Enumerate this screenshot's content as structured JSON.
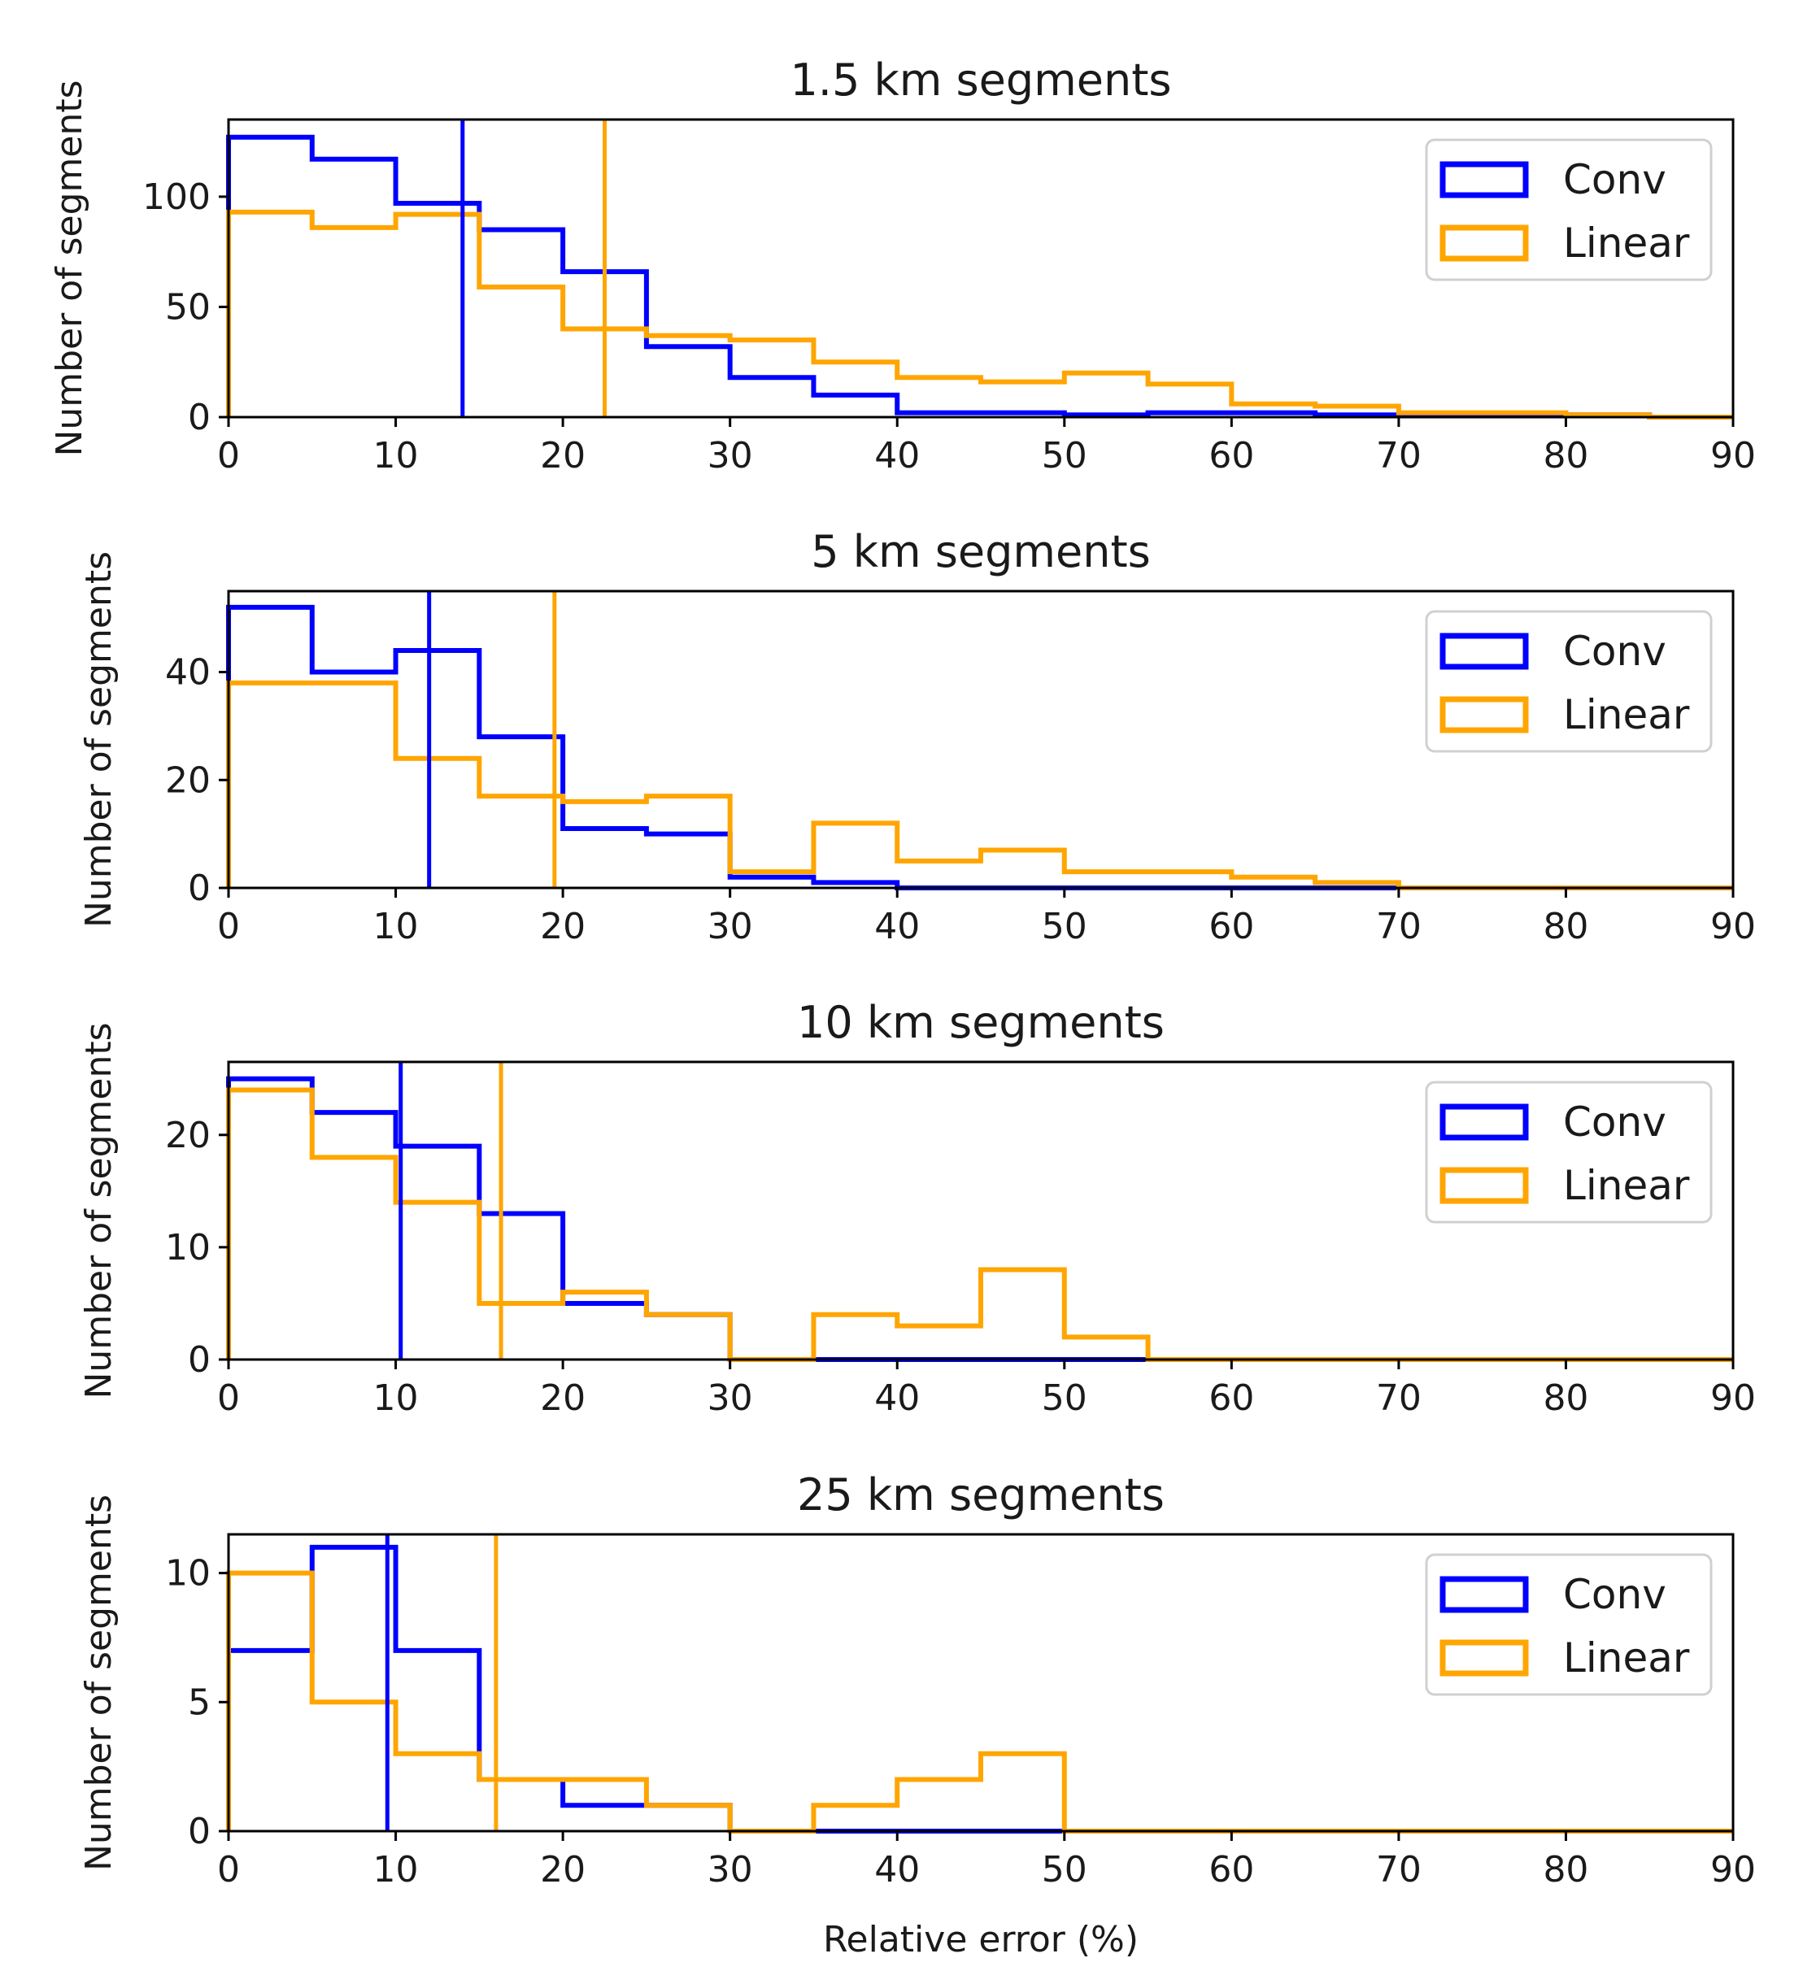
{
  "figure": {
    "xlabel": "Relative error (%)",
    "ylabel": "Number of segments"
  },
  "colors": {
    "conv": "#0000ff",
    "linear": "#ffa500"
  },
  "chart_data": [
    {
      "type": "histogram",
      "title": "1.5 km segments",
      "xlim": [
        0,
        90
      ],
      "ylim": [
        0,
        135
      ],
      "xticks": [
        0,
        10,
        20,
        30,
        40,
        50,
        60,
        70,
        80,
        90
      ],
      "yticks": [
        0,
        50,
        100
      ],
      "bin_edges": [
        0,
        5,
        10,
        15,
        20,
        25,
        30,
        35,
        40,
        45,
        50,
        55,
        60,
        65,
        70,
        75,
        80,
        85,
        90
      ],
      "series": [
        {
          "name": "Conv",
          "values": [
            127,
            117,
            97,
            85,
            66,
            32,
            18,
            10,
            2,
            2,
            1,
            2,
            2,
            1,
            1,
            1,
            1,
            0
          ],
          "mean_line": 14
        },
        {
          "name": "Linear",
          "values": [
            93,
            86,
            92,
            59,
            40,
            37,
            35,
            25,
            18,
            16,
            20,
            15,
            6,
            5,
            2,
            2,
            1,
            0
          ],
          "mean_line": 22.5
        }
      ],
      "legend": {
        "position": "upper right",
        "entries": [
          "Conv",
          "Linear"
        ]
      }
    },
    {
      "type": "histogram",
      "title": "5 km segments",
      "xlim": [
        0,
        90
      ],
      "ylim": [
        0,
        55
      ],
      "xticks": [
        0,
        10,
        20,
        30,
        40,
        50,
        60,
        70,
        80,
        90
      ],
      "yticks": [
        0,
        20,
        40
      ],
      "bin_edges": [
        0,
        5,
        10,
        15,
        20,
        25,
        30,
        35,
        40,
        45,
        50,
        55,
        60,
        65,
        70,
        75,
        80,
        85,
        90
      ],
      "series": [
        {
          "name": "Conv",
          "values": [
            52,
            40,
            44,
            28,
            11,
            10,
            2,
            1,
            0,
            0,
            0,
            0,
            0,
            0,
            0,
            0,
            0,
            0
          ],
          "mean_line": 12
        },
        {
          "name": "Linear",
          "values": [
            38,
            38,
            24,
            17,
            16,
            17,
            3,
            12,
            5,
            7,
            3,
            3,
            2,
            1,
            0,
            0,
            0,
            0
          ],
          "mean_line": 19.5
        }
      ],
      "legend": {
        "position": "upper right",
        "entries": [
          "Conv",
          "Linear"
        ]
      }
    },
    {
      "type": "histogram",
      "title": "10 km segments",
      "xlim": [
        0,
        90
      ],
      "ylim": [
        0,
        26.5
      ],
      "xticks": [
        0,
        10,
        20,
        30,
        40,
        50,
        60,
        70,
        80,
        90
      ],
      "yticks": [
        0,
        10,
        20
      ],
      "bin_edges": [
        0,
        5,
        10,
        15,
        20,
        25,
        30,
        35,
        40,
        45,
        50,
        55,
        60,
        65,
        70,
        75,
        80,
        85,
        90
      ],
      "series": [
        {
          "name": "Conv",
          "values": [
            25,
            22,
            19,
            13,
            5,
            4,
            0,
            0,
            0,
            0,
            0,
            0,
            0,
            0,
            0,
            0,
            0,
            0
          ],
          "mean_line": 10.3
        },
        {
          "name": "Linear",
          "values": [
            24,
            18,
            14,
            5,
            6,
            4,
            0,
            4,
            3,
            8,
            2,
            0,
            0,
            0,
            0,
            0,
            0,
            0
          ],
          "mean_line": 16.3
        }
      ],
      "legend": {
        "position": "upper right",
        "entries": [
          "Conv",
          "Linear"
        ]
      }
    },
    {
      "type": "histogram",
      "title": "25 km segments",
      "xlim": [
        0,
        90
      ],
      "ylim": [
        0,
        11.5
      ],
      "xticks": [
        0,
        10,
        20,
        30,
        40,
        50,
        60,
        70,
        80,
        90
      ],
      "yticks": [
        0,
        5,
        10
      ],
      "bin_edges": [
        0,
        5,
        10,
        15,
        20,
        25,
        30,
        35,
        40,
        45,
        50,
        55,
        60,
        65,
        70,
        75,
        80,
        85,
        90
      ],
      "series": [
        {
          "name": "Conv",
          "values": [
            7,
            11,
            7,
            2,
            1,
            1,
            0,
            0,
            0,
            0,
            0,
            0,
            0,
            0,
            0,
            0,
            0,
            0
          ],
          "mean_line": 9.5
        },
        {
          "name": "Linear",
          "values": [
            10,
            5,
            3,
            2,
            2,
            1,
            0,
            1,
            2,
            3,
            0,
            0,
            0,
            0,
            0,
            0,
            0,
            0
          ],
          "mean_line": 16
        }
      ],
      "legend": {
        "position": "upper right",
        "entries": [
          "Conv",
          "Linear"
        ]
      }
    }
  ]
}
